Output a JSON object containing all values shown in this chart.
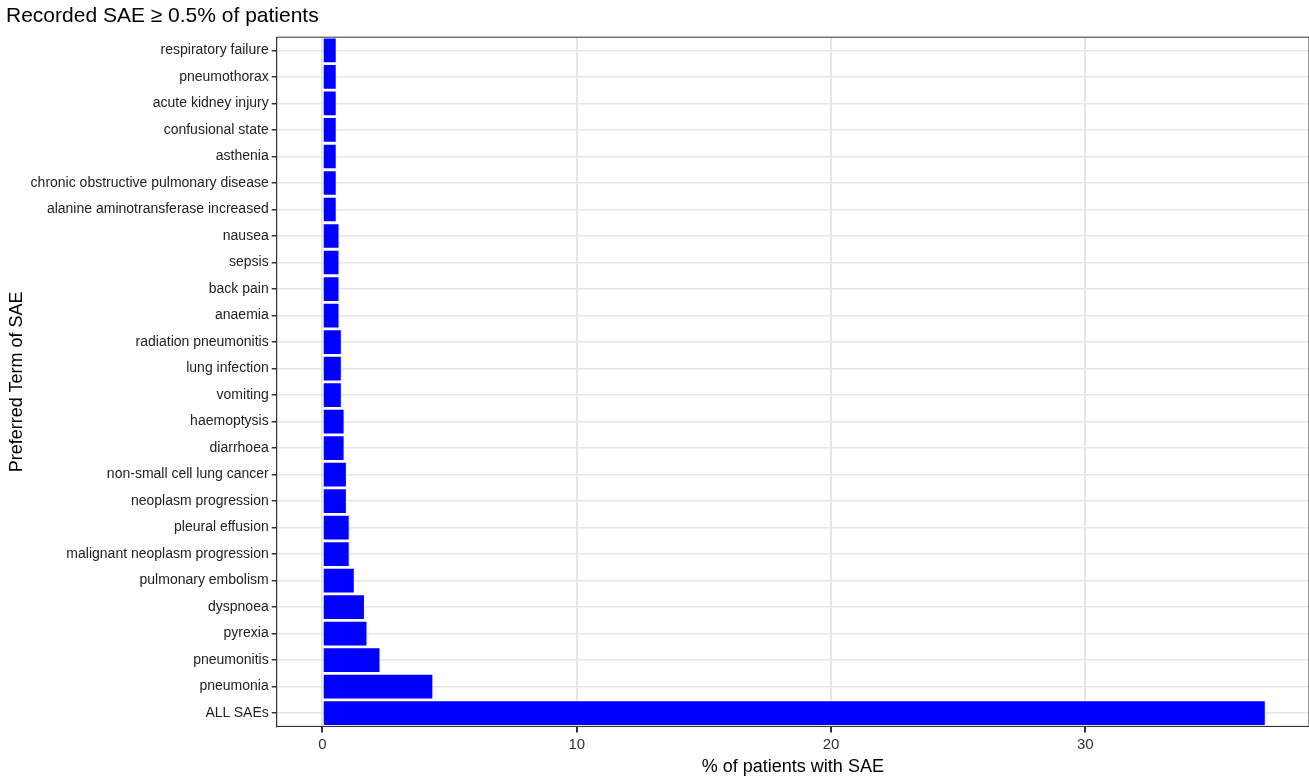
{
  "chart_data": {
    "type": "bar",
    "orientation": "horizontal",
    "title": "Recorded SAE ≥ 0.5% of patients",
    "xlabel": "% of patients with SAE",
    "ylabel": "Preferred Term of SAE",
    "categories": [
      "respiratory failure",
      "pneumothorax",
      "acute kidney injury",
      "confusional state",
      "asthenia",
      "chronic obstructive pulmonary disease",
      "alanine aminotransferase increased",
      "nausea",
      "sepsis",
      "back pain",
      "anaemia",
      "radiation pneumonitis",
      "lung infection",
      "vomiting",
      "haemoptysis",
      "diarrhoea",
      "non-small cell lung cancer",
      "neoplasm progression",
      "pleural effusion",
      "malignant neoplasm progression",
      "pulmonary embolism",
      "dyspnoea",
      "pyrexia",
      "pneumonitis",
      "pneumonia",
      "ALL SAEs"
    ],
    "values": [
      0.56,
      0.56,
      0.56,
      0.56,
      0.56,
      0.56,
      0.56,
      0.67,
      0.67,
      0.67,
      0.67,
      0.76,
      0.76,
      0.76,
      0.87,
      0.87,
      0.96,
      0.96,
      1.07,
      1.07,
      1.27,
      1.67,
      1.77,
      2.28,
      4.36,
      37.1
    ],
    "color": "#0000ff",
    "xlim": [
      -1.8,
      38.8
    ],
    "xticks": [
      0,
      10,
      20,
      30
    ],
    "grid": true
  }
}
